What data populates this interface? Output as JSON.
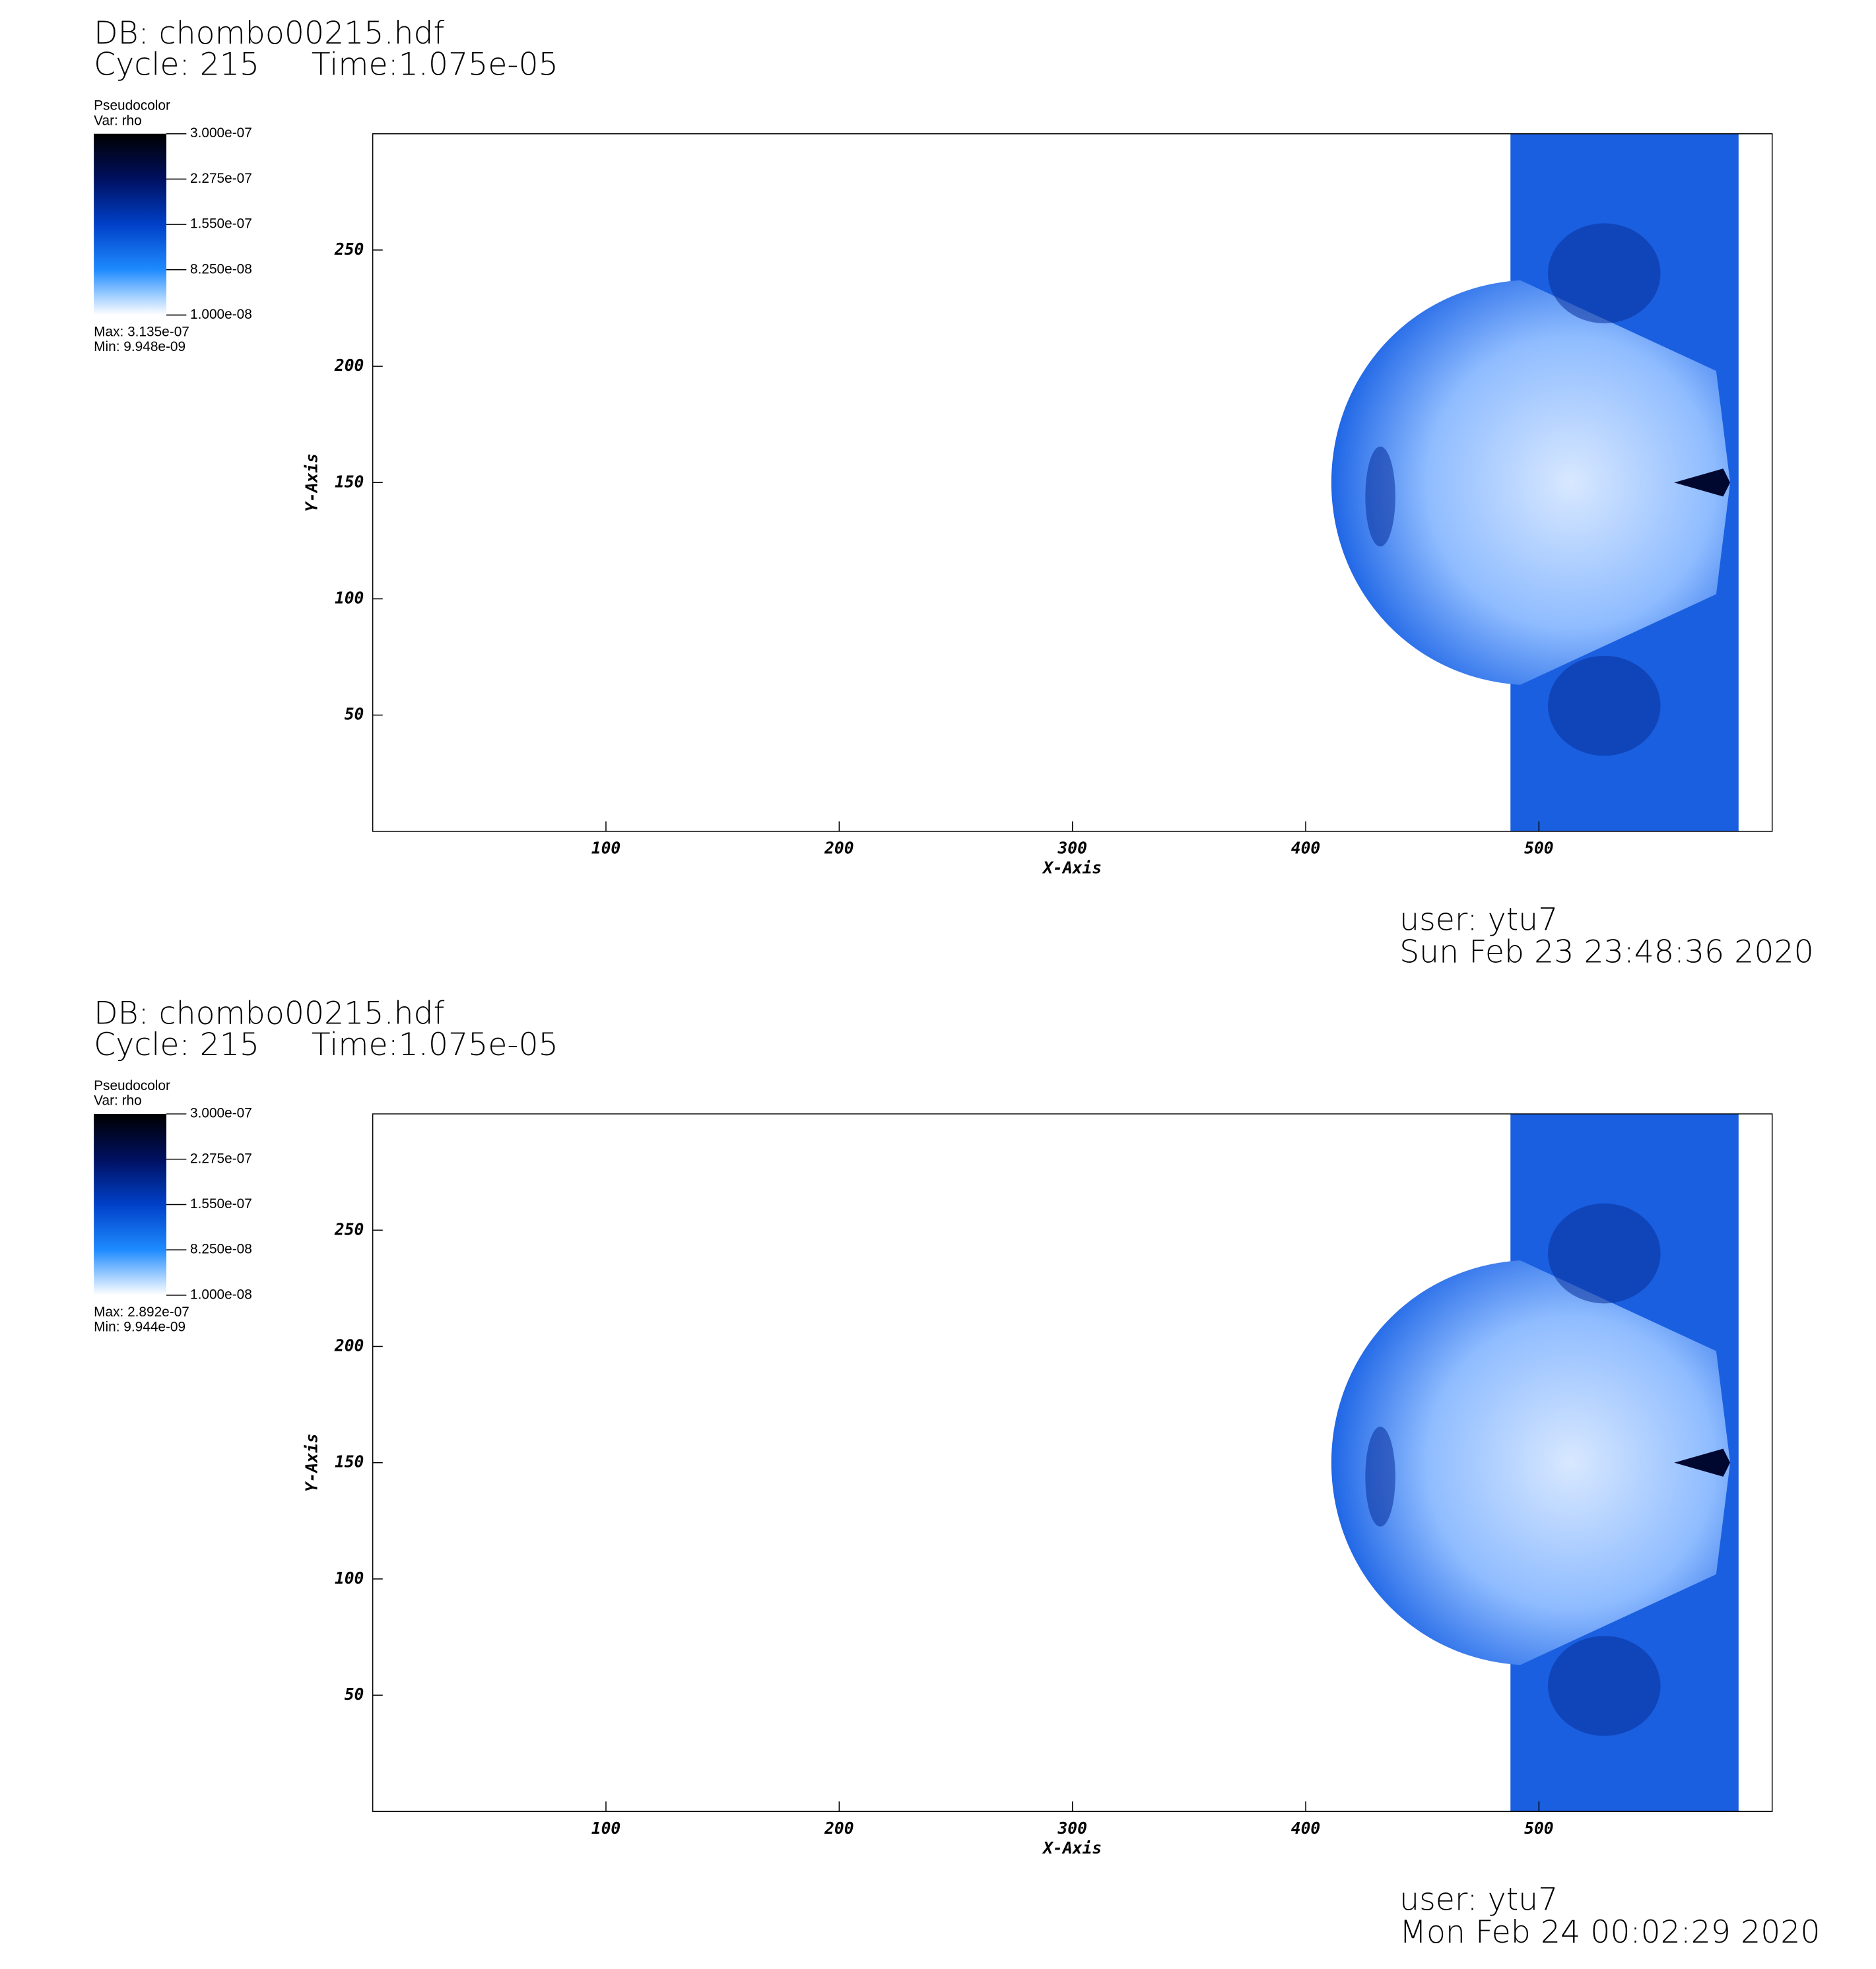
{
  "chart_data": [
    {
      "type": "pseudocolor",
      "title": "DB: chombo00215.hdf",
      "cycle": "Cycle: 215",
      "time": "Time:1.075e-05",
      "legend": {
        "title": "Pseudocolor",
        "variable": "Var: rho",
        "ticks": [
          {
            "value": 3e-07,
            "label": "3.000e-07"
          },
          {
            "value": 2.275e-07,
            "label": "2.275e-07"
          },
          {
            "value": 1.55e-07,
            "label": "1.550e-07"
          },
          {
            "value": 8.25e-08,
            "label": "8.250e-08"
          },
          {
            "value": 1e-08,
            "label": "1.000e-08"
          }
        ],
        "colors": [
          "#ffffff",
          "#1e8bff",
          "#0040c8",
          "#001060",
          "#000000"
        ],
        "max": "Max:  3.135e-07",
        "min": "Min:  9.948e-09"
      },
      "xlabel": "X-Axis",
      "ylabel": "Y-Axis",
      "xlim": [
        0,
        600
      ],
      "ylim": [
        0,
        300
      ],
      "xticks": [
        100,
        200,
        300,
        400,
        500
      ],
      "yticks": [
        50,
        100,
        150,
        200,
        250
      ],
      "user": "user: ytu7",
      "date": "Sun Feb 23 23:48:36 2020"
    },
    {
      "type": "pseudocolor",
      "title": "DB: chombo00215.hdf",
      "cycle": "Cycle: 215",
      "time": "Time:1.075e-05",
      "legend": {
        "title": "Pseudocolor",
        "variable": "Var: rho",
        "ticks": [
          {
            "value": 3e-07,
            "label": "3.000e-07"
          },
          {
            "value": 2.275e-07,
            "label": "2.275e-07"
          },
          {
            "value": 1.55e-07,
            "label": "1.550e-07"
          },
          {
            "value": 8.25e-08,
            "label": "8.250e-08"
          },
          {
            "value": 1e-08,
            "label": "1.000e-08"
          }
        ],
        "colors": [
          "#ffffff",
          "#1e8bff",
          "#0040c8",
          "#001060",
          "#000000"
        ],
        "max": "Max:  2.892e-07",
        "min": "Min:  9.944e-09"
      },
      "xlabel": "X-Axis",
      "ylabel": "Y-Axis",
      "xlim": [
        0,
        600
      ],
      "ylim": [
        0,
        300
      ],
      "xticks": [
        100,
        200,
        300,
        400,
        500
      ],
      "yticks": [
        50,
        100,
        150,
        200,
        250
      ],
      "user": "user: ytu7",
      "date": "Mon Feb 24 00:02:29 2020"
    }
  ]
}
